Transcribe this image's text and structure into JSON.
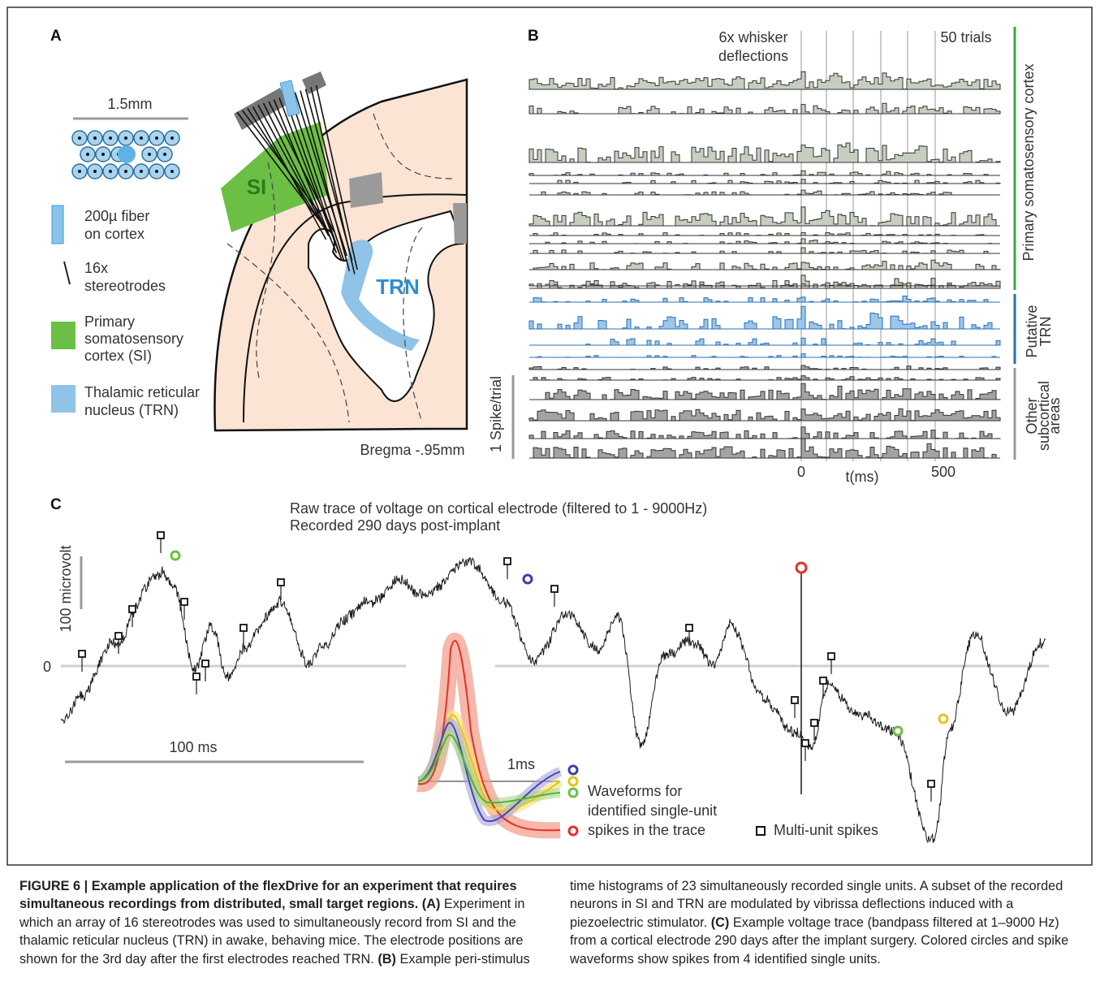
{
  "panel_a": {
    "label": "A",
    "scale": "1.5mm",
    "legend": [
      {
        "lines": [
          "200µ fiber",
          "on cortex"
        ]
      },
      {
        "lines": [
          "16x",
          "stereotrodes"
        ]
      },
      {
        "lines": [
          "Primary",
          "somatosensory",
          "cortex (SI)"
        ]
      },
      {
        "lines": [
          "Thalamic reticular",
          "nucleus (TRN)"
        ]
      }
    ],
    "region_si": "SI",
    "region_trn": "TRN",
    "bregma": "Bregma -.95mm"
  },
  "panel_b": {
    "label": "B",
    "stimulus": [
      "6x whisker",
      "deflections"
    ],
    "trials": "50 trials",
    "groups": [
      {
        "lines": [
          "Primary somatosensory cortex"
        ]
      },
      {
        "lines": [
          "Putative",
          "TRN"
        ]
      },
      {
        "lines": [
          "Other",
          "subcortical",
          "areas"
        ]
      }
    ],
    "scale": "1 Spike/trial",
    "x_labels": [
      "0",
      "t(ms)",
      "500"
    ]
  },
  "panel_c": {
    "label": "C",
    "title": [
      "Raw trace of voltage on cortical electrode (filtered to 1 - 9000Hz)",
      "Recorded 290 days post-implant"
    ],
    "y_scale": "100 microvolt",
    "zero": "0",
    "time_scale": "100 ms",
    "waveform_scale": "1ms",
    "waveform_legend": [
      "Waveforms for",
      "identified single-unit",
      "spikes in the trace"
    ],
    "multi_unit": "Multi-unit spikes"
  },
  "caption": {
    "title": "FIGURE 6 | Example application of the flexDrive for an experiment that requires simultaneous recordings from distributed, small target regions.",
    "parts": [
      {
        "label": "(A)",
        "text": "Experiment in which an array of 16 stereotrodes was used to simultaneously record from SI and the thalamic reticular nucleus (TRN) in awake, behaving mice. The electrode positions are shown for the 3rd day after the first electrodes reached TRN."
      },
      {
        "label": "(B)",
        "text": "Example peri-stimulus time histograms of 23 simultaneously recorded single units. A subset of the recorded neurons in SI and TRN are modulated by vibrissa deflections induced with a piezoelectric stimulator."
      },
      {
        "label": "(C)",
        "text": "Example voltage trace (bandpass filtered at 1–9000 Hz) from a cortical electrode 290 days after the implant surgery. Colored circles and spike waveforms show spikes from 4 identified single units."
      }
    ]
  }
}
